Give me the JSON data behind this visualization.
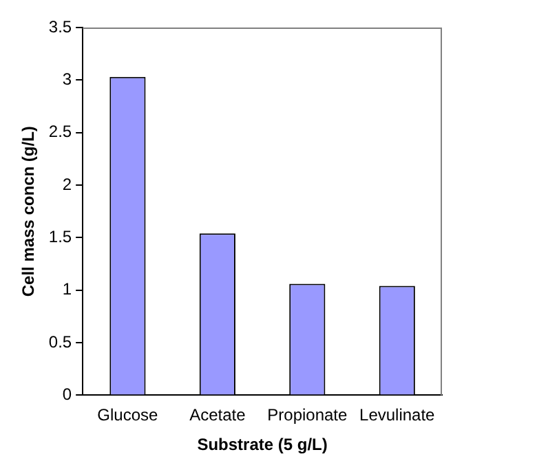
{
  "chart_data": {
    "type": "bar",
    "xlabel": "Substrate (5 g/L)",
    "ylabel": "Cell mass concn (g/L)",
    "categories": [
      "Glucose",
      "Acetate",
      "Propionate",
      "Levulinate"
    ],
    "values": [
      3.03,
      1.54,
      1.06,
      1.04
    ],
    "color": "#9999ff",
    "ylim": [
      0,
      3.5
    ],
    "yticks": [
      0,
      0.5,
      1,
      1.5,
      2,
      2.5,
      3,
      3.5
    ],
    "grid": false,
    "legend": false
  }
}
